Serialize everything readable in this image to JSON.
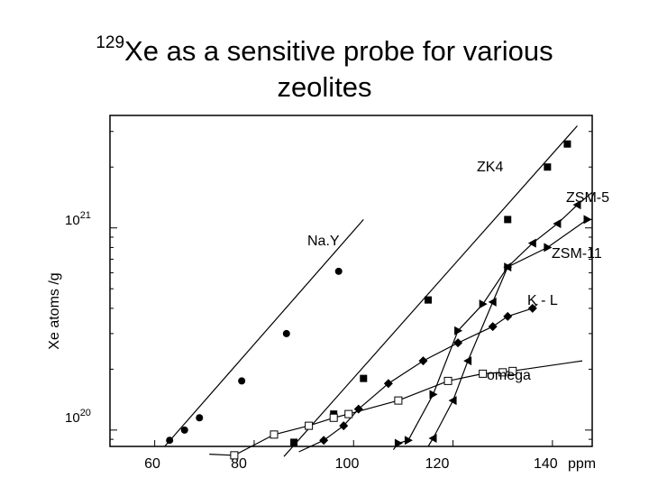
{
  "title": {
    "superscript": "129",
    "line1": "Xe as a sensitive probe for various",
    "line2": "zeolites"
  },
  "chart_data": {
    "type": "scatter",
    "title": "129Xe as a sensitive probe for various zeolites",
    "xlabel": "ppm",
    "ylabel": "Xe atoms /g",
    "xlim": [
      51,
      148
    ],
    "ylim": [
      8.3e+19,
      3.6e+21
    ],
    "yscale": "log",
    "x_ticks": [
      "60",
      "80",
      "100",
      "120",
      "140"
    ],
    "x_tick_values": [
      60,
      80,
      100,
      120,
      140
    ],
    "x_unit": "ppm",
    "y_ticks": [
      {
        "value": 1e+20,
        "base": "10",
        "exp": "20"
      },
      {
        "value": 1e+21,
        "base": "10",
        "exp": "21"
      }
    ],
    "grid": false,
    "series": [
      {
        "name": "Na.Y",
        "marker": "circle-filled",
        "x": [
          63,
          66,
          69,
          77.5,
          86.5,
          97
        ],
        "y": [
          8.9e+19,
          1e+20,
          1.15e+20,
          1.75e+20,
          3e+20,
          6.1e+20
        ],
        "fit": [
          [
            62,
            8.3e+19
          ],
          [
            102,
            1.1e+21
          ]
        ]
      },
      {
        "name": "ZK4",
        "marker": "square-filled",
        "x": [
          88,
          96,
          102,
          115,
          131,
          139,
          143
        ],
        "y": [
          8.7e+19,
          1.2e+20,
          1.8e+20,
          4.4e+20,
          1.1e+21,
          2e+21,
          2.6e+21
        ],
        "fit": [
          [
            86,
            7.4e+19
          ],
          [
            145,
            3.2e+21
          ]
        ]
      },
      {
        "name": "ZSM-5",
        "marker": "triangle-left-filled",
        "x": [
          116,
          120,
          123,
          128,
          131,
          136,
          141,
          145
        ],
        "y": [
          9.1e+19,
          1.4e+20,
          2.2e+20,
          4.3e+20,
          6.4e+20,
          8.4e+20,
          1.05e+21,
          1.3e+21
        ],
        "fit": [
          [
            115,
            8.3e+19
          ],
          [
            148,
            1.5e+21
          ]
        ]
      },
      {
        "name": "ZSM-11",
        "marker": "triangle-right-filled",
        "x": [
          109,
          111,
          116,
          121,
          126,
          131,
          139,
          147
        ],
        "y": [
          8.6e+19,
          8.9e+19,
          1.5e+20,
          3.1e+20,
          4.2e+20,
          6.4e+20,
          8e+20,
          1.1e+21
        ],
        "fit": [
          [
            108,
            8e+19
          ],
          [
            148,
            1.1e+21
          ]
        ]
      },
      {
        "name": "K - L",
        "marker": "diamond-filled",
        "x": [
          94,
          98,
          101,
          107,
          114,
          121,
          128,
          131,
          136
        ],
        "y": [
          8.9e+19,
          1.05e+20,
          1.27e+20,
          1.7e+20,
          2.2e+20,
          2.7e+20,
          3.25e+20,
          3.65e+20,
          4e+20
        ],
        "fit": [
          [
            89,
            7.8e+19
          ],
          [
            137,
            4.2e+20
          ]
        ]
      },
      {
        "name": "omega",
        "marker": "square-open",
        "x": [
          76,
          84,
          91,
          96,
          99,
          109,
          119,
          126,
          130,
          132
        ],
        "y": [
          7.5e+19,
          9.5e+19,
          1.05e+20,
          1.15e+20,
          1.2e+20,
          1.4e+20,
          1.75e+20,
          1.9e+20,
          1.93e+20,
          1.96e+20
        ],
        "fit": [
          [
            71,
            7.6e+19
          ],
          [
            146,
            2.2e+20
          ]
        ]
      }
    ]
  }
}
